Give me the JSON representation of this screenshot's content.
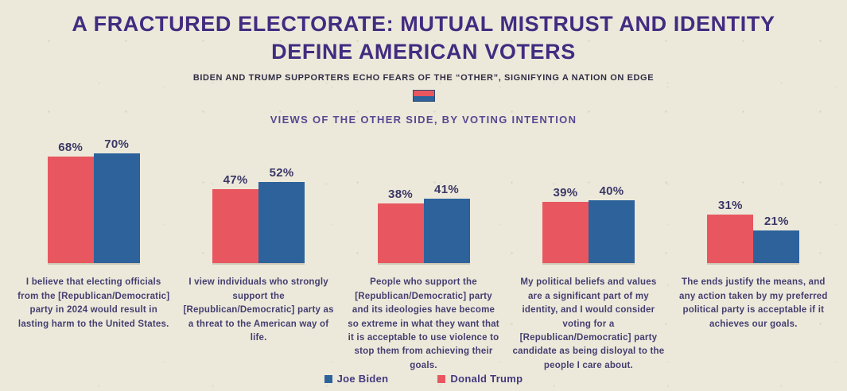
{
  "colors": {
    "background": "#ece9db",
    "trump_red": "#e8575f",
    "biden_blue": "#2d629b",
    "title_purple": "#422c80",
    "text_ink": "#453e70"
  },
  "header": {
    "title_line1": "A FRACTURED ELECTORATE: MUTUAL MISTRUST AND IDENTITY",
    "title_line2": "DEFINE AMERICAN VOTERS",
    "subtitle": "BIDEN AND TRUMP SUPPORTERS ECHO FEARS OF THE “OTHER”, SIGNIFYING A NATION ON EDGE",
    "chart_heading": "VIEWS OF THE OTHER SIDE, BY VOTING INTENTION"
  },
  "legend": [
    {
      "label": "Joe Biden",
      "color": "#2d629b"
    },
    {
      "label": "Donald Trump",
      "color": "#e8575f"
    }
  ],
  "chart_data": {
    "type": "bar",
    "title": "Views of the other side, by voting intention",
    "unit": "%",
    "ylim": [
      0,
      75
    ],
    "grid": false,
    "legend_position": "bottom",
    "group_order_left_to_right": [
      "Donald Trump",
      "Joe Biden"
    ],
    "categories": [
      "I believe that electing officials from the [Republican/Democratic] party in 2024 would result in lasting harm to the United States.",
      "I view individuals who strongly support the [Republican/Democratic] party as a threat to the American way of life.",
      "People who support the [Republican/Democratic] party and its ideologies have become so extreme in what they want that it is acceptable to use violence to stop them from achieving their goals.",
      "My political beliefs and values are a significant part of my identity, and I would consider voting for a [Republican/Democratic] party candidate as being disloyal to the people I care about.",
      "The ends justify the means, and any action taken by my preferred political party is acceptable if it achieves our goals."
    ],
    "series": [
      {
        "name": "Donald Trump",
        "color": "#e8575f",
        "values": [
          68,
          47,
          38,
          39,
          31
        ]
      },
      {
        "name": "Joe Biden",
        "color": "#2d629b",
        "values": [
          70,
          52,
          41,
          40,
          21
        ]
      }
    ]
  }
}
